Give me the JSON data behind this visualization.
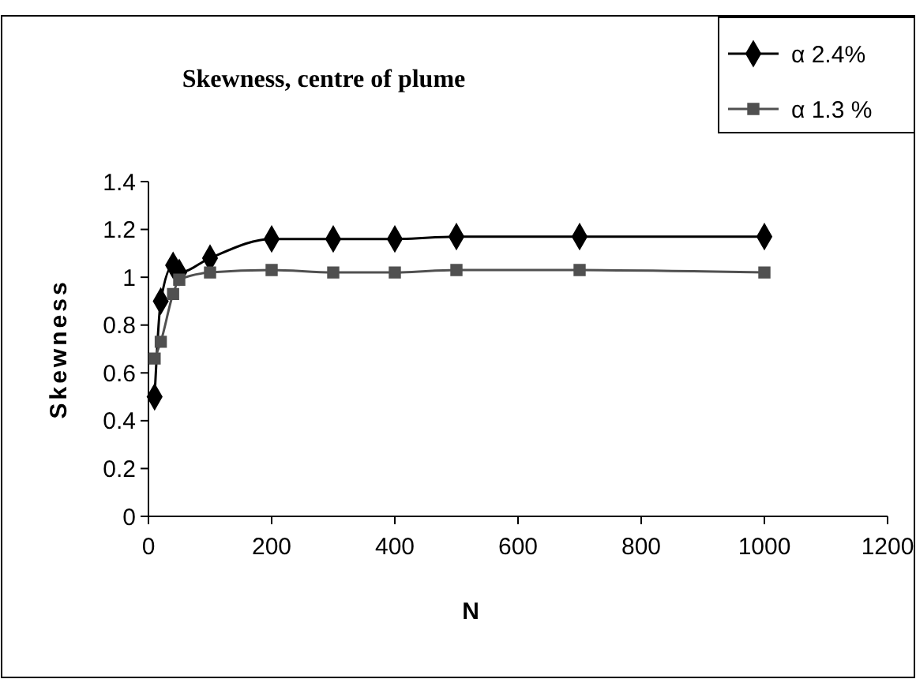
{
  "chart_data": {
    "type": "line",
    "title": "Skewness, centre of plume",
    "xlabel": "N",
    "ylabel": "Skewness",
    "xlim": [
      0,
      1200
    ],
    "xticks": [
      0,
      200,
      400,
      600,
      800,
      1000,
      1200
    ],
    "ylim": [
      0,
      1.4
    ],
    "yticks": [
      0,
      0.2,
      0.4,
      0.6,
      0.8,
      1,
      1.2,
      1.4
    ],
    "legend": "top right",
    "grid": false,
    "series": [
      {
        "name": "α 2.4%",
        "color": "#000000",
        "marker": "diamond",
        "x": [
          10,
          20,
          40,
          50,
          100,
          200,
          300,
          400,
          500,
          700,
          1000
        ],
        "values": [
          0.5,
          0.9,
          1.05,
          1.02,
          1.08,
          1.16,
          1.16,
          1.16,
          1.17,
          1.17,
          1.17
        ]
      },
      {
        "name": "α 1.3 %",
        "color": "#505050",
        "marker": "square",
        "x": [
          10,
          20,
          40,
          50,
          100,
          200,
          300,
          400,
          500,
          700,
          1000
        ],
        "values": [
          0.66,
          0.73,
          0.93,
          0.99,
          1.02,
          1.03,
          1.02,
          1.02,
          1.03,
          1.03,
          1.02
        ]
      }
    ]
  }
}
